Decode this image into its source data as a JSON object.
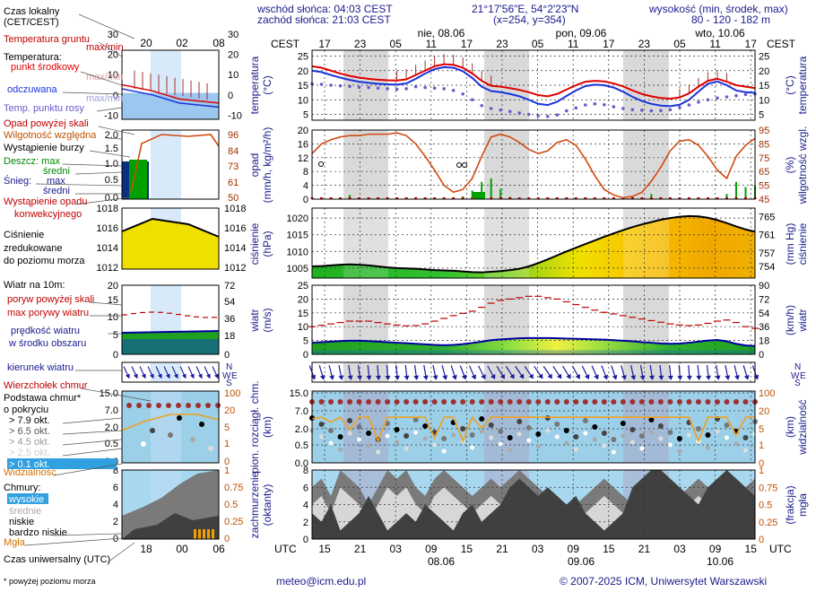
{
  "header": {
    "sunrise": "wschód słońca: 04:03 CEST",
    "sunset": "zachód słońca: 21:03 CEST",
    "coords": "21°17'56\"E, 54°2'23\"N",
    "grid": "(x=254,  y=354)",
    "altitude_title": "wysokość (min, środek, max)",
    "altitude_values": "80 - 120 - 182 m"
  },
  "legend": {
    "local_time": "Czas lokalny",
    "local_time_sub": "(CET/CEST)",
    "soil_temp": "Temperatura gruntu",
    "maxmin": "max/min",
    "temperature": "Temperatura:",
    "midpoint": "punkt środkowy",
    "maxmin2": "max/min",
    "felt": "odczuwana",
    "maxmin3": "max/min",
    "dewpoint": "Temp. punktu rosy",
    "precip_over": "Opad powyżej skali",
    "humidity": "Wilgotność względna",
    "storm": "Wystąpienie burzy",
    "rain": "Deszcz: max",
    "rain_avg": "średni",
    "snow": "Śnieg:",
    "snow_max": "max",
    "snow_avg": "średni",
    "conv": "Wystąpienie opadu",
    "conv2": "konwekcyjnego",
    "pressure1": "Ciśnienie",
    "pressure2": "zredukowane",
    "pressure3": "do poziomu morza",
    "wind_title": "Wiatr na 10m:",
    "gust_over": "poryw powyżej skali",
    "gust_max": "max porywy wiatru",
    "wind_avg": "prędkość wiatru",
    "wind_avg2": "w środku obszaru",
    "wind_dir": "kierunek wiatru",
    "cloud_top": "Wierzchołek chmur",
    "cloud_base": "Podstawa chmur*",
    "cloud_base2": "o pokryciu",
    "okt79": "> 7.9 okt.",
    "okt65": "> 6.5 okt.",
    "okt45": "> 4.5 okt.",
    "okt25": "> 2.5 okt.",
    "okt01": "> 0.1 okt.",
    "visibility": "Widzialność",
    "clouds": "Chmury:",
    "high": "wysokie",
    "mid": "średnie",
    "low": "niskie",
    "vlow": "bardzo niskie",
    "fog": "Mgła",
    "utc_time": "Czas uniwersalny (UTC)",
    "footnote": "* powyżej poziomu morza",
    "leg_top_ticks": [
      "20",
      "02",
      "08"
    ],
    "leg_bottom_ticks": [
      "18",
      "00",
      "06"
    ]
  },
  "footer": {
    "email": "meteo@icm.edu.pl",
    "copyright": "© 2007-2025 ICM, Uniwersytet Warszawski"
  },
  "axes": {
    "cest": "CEST",
    "utc": "UTC",
    "top_hours": [
      "17",
      "23",
      "05",
      "11",
      "17",
      "23",
      "05",
      "11",
      "17",
      "23",
      "05",
      "11",
      "17"
    ],
    "bottom_hours": [
      "15",
      "21",
      "03",
      "09",
      "15",
      "21",
      "03",
      "09",
      "15",
      "21",
      "03",
      "09",
      "15"
    ],
    "top_days": [
      "nie, 08.06",
      "pon, 09.06",
      "wto, 10.06"
    ],
    "bottom_days": [
      "08.06",
      "09.06",
      "10.06"
    ]
  },
  "chart_data": [
    {
      "type": "line",
      "name": "temperature",
      "ylabel_left": "temperatura",
      "ylabel_left_unit": "(°C)",
      "ylabel_right": "temperatura",
      "ylabel_right_unit": "(°C)",
      "ylim": [
        3,
        27
      ],
      "ticks": [
        "25",
        "20",
        "15",
        "10",
        "5"
      ],
      "series": [
        {
          "name": "punkt środkowy",
          "color": "#e00000",
          "values": [
            21.5,
            21,
            20,
            19,
            18.2,
            17.6,
            17.2,
            16.9,
            16.7,
            16.6,
            17,
            18.5,
            20,
            21.5,
            22.2,
            22,
            21,
            19,
            16.5,
            14.8,
            14.5,
            14,
            13.4,
            12.6,
            11.6,
            11.2,
            12,
            13.5,
            15,
            16.2,
            16.5,
            16.3,
            15.6,
            14.6,
            13.2,
            12,
            11.2,
            10.6,
            10.4,
            10.8,
            12.2,
            14.5,
            16.5,
            17.2,
            16.2,
            15,
            14.5,
            14
          ]
        },
        {
          "name": "odczuwana",
          "color": "#1a33dd",
          "values": [
            20,
            19.5,
            18.5,
            17.6,
            16.8,
            16.2,
            15.8,
            15.5,
            15.3,
            15.2,
            15.6,
            17.2,
            19,
            20.5,
            21.2,
            21,
            19.8,
            17.5,
            14.5,
            13,
            12.6,
            12,
            11.2,
            10,
            8.6,
            8.2,
            9.3,
            11.3,
            13.2,
            14.7,
            15.2,
            15,
            14.2,
            12.8,
            11,
            9.6,
            8.6,
            8,
            7.8,
            8.3,
            10,
            12.8,
            15.5,
            16.3,
            15,
            13.2,
            12.6,
            12.4
          ]
        },
        {
          "name": "Temp. punktu rosy",
          "color": "#6a5acd",
          "values": [
            15.5,
            15.3,
            15,
            14.8,
            14.6,
            14.3,
            14.2,
            14,
            13.8,
            13.6,
            13.8,
            14.5,
            14.2,
            14,
            13.8,
            13.2,
            12,
            10,
            8,
            7,
            6.5,
            6,
            5.5,
            5,
            4.5,
            4.3,
            4.8,
            6.2,
            7.2,
            8.2,
            8.6,
            8.3,
            7.6,
            7,
            6.6,
            6.4,
            6.2,
            6.3,
            6.6,
            7.4,
            8.2,
            9.2,
            10,
            10.6,
            11,
            11.4,
            11.8,
            12
          ]
        }
      ]
    },
    {
      "type": "line",
      "name": "precipitation_humidity",
      "ylabel_left": "opad",
      "ylabel_left_unit": "(mm/h, kg/m²/h)",
      "ylabel_right": "wilgotność wzgl.",
      "ylabel_right_unit": "(%)",
      "ylim": [
        0,
        20
      ],
      "ticks": [
        "20",
        "16",
        "12",
        "8",
        "4",
        "0"
      ],
      "ticks_right": [
        "95",
        "85",
        "75",
        "65",
        "55",
        "45"
      ],
      "humidity_lim": [
        45,
        95
      ],
      "series": [
        {
          "name": "Wilgotność względna",
          "color": "#d04a10",
          "values": [
            78,
            85,
            88,
            90,
            91,
            91,
            92,
            92,
            92,
            93,
            91,
            85,
            76,
            66,
            55,
            50,
            52,
            60,
            76,
            90,
            92,
            90,
            86,
            81,
            78,
            80,
            86,
            88,
            84,
            74,
            62,
            52,
            48,
            46,
            47,
            50,
            58,
            68,
            80,
            87,
            88,
            84,
            76,
            66,
            60,
            76,
            84,
            89
          ]
        },
        {
          "name": "Deszcz: max",
          "color": "#008800",
          "values": [
            0.2,
            0.5,
            0.2,
            0.3,
            1.2,
            0.4,
            0.2,
            0,
            0,
            0,
            0,
            0,
            0.3,
            0.4,
            0.2,
            0.3,
            0.8,
            2.5,
            5,
            6,
            3,
            0.7,
            0.3,
            0.2,
            0,
            0,
            0,
            0,
            0,
            0,
            0.2,
            0,
            0.5,
            0.2,
            0.3,
            0.4,
            1.5,
            0.6,
            0.2,
            0.2,
            0,
            0,
            0,
            0.5,
            1.5,
            5,
            3.5,
            4
          ]
        }
      ]
    },
    {
      "type": "area",
      "name": "pressure",
      "ylabel_left": "ciśnienie",
      "ylabel_left_unit": "(hPa)",
      "ylabel_right": "ciśnienie",
      "ylabel_right_unit": "(mm Hg)",
      "ylim": [
        1002,
        1023
      ],
      "ticks": [
        "1020",
        "1015",
        "1010",
        "1005"
      ],
      "ticks_right": [
        "765",
        "761",
        "757",
        "754"
      ],
      "series": [
        {
          "name": "Ciśnienie",
          "color": "#000000",
          "values": [
            1005.5,
            1005.6,
            1005.8,
            1006.0,
            1006.1,
            1006.0,
            1005.8,
            1005.5,
            1005.2,
            1005.0,
            1004.9,
            1004.8,
            1004.6,
            1004.4,
            1004.3,
            1004.2,
            1004.0,
            1003.8,
            1003.7,
            1003.9,
            1004.1,
            1004.4,
            1004.8,
            1005.5,
            1006.5,
            1007.6,
            1008.8,
            1010.0,
            1011.1,
            1012.2,
            1013.3,
            1014.4,
            1015.4,
            1016.4,
            1017.3,
            1018.1,
            1018.8,
            1019.5,
            1020.0,
            1020.4,
            1020.6,
            1020.5,
            1020.1,
            1019.4,
            1018.5,
            1017.5,
            1016.6,
            1015.9
          ]
        }
      ]
    },
    {
      "type": "line",
      "name": "wind",
      "ylabel_left": "wiatr",
      "ylabel_left_unit": "(m/s)",
      "ylabel_right": "wiatr",
      "ylabel_right_unit": "(km/h)",
      "ylim": [
        0,
        25
      ],
      "ticks": [
        "25",
        "20",
        "15",
        "10",
        "5",
        "0"
      ],
      "ticks_right": [
        "90",
        "72",
        "54",
        "36",
        "18",
        "0"
      ],
      "series": [
        {
          "name": "prędkość wiatru",
          "color": "#0000a0",
          "values": [
            4.2,
            4.4,
            4.6,
            4.8,
            4.9,
            4.9,
            4.8,
            4.6,
            4.4,
            4.2,
            4.0,
            3.8,
            3.6,
            3.4,
            3.3,
            3.4,
            3.7,
            4.1,
            4.6,
            5.1,
            5.4,
            5.6,
            5.8,
            5.9,
            5.9,
            5.9,
            5.8,
            5.7,
            5.6,
            5.5,
            5.4,
            5.3,
            5.1,
            4.9,
            4.7,
            4.4,
            4.2,
            3.9,
            3.8,
            3.9,
            4.2,
            4.6,
            5.0,
            5.2,
            4.7,
            3.8,
            3.2,
            3.0
          ]
        },
        {
          "name": "max porywy wiatru",
          "color": "#c00000",
          "values": [
            10,
            10.5,
            11,
            11.5,
            12,
            12,
            12,
            11.5,
            11,
            10.6,
            10.3,
            10.4,
            11,
            12,
            13,
            14,
            14.8,
            15.6,
            17,
            18.5,
            19.5,
            20,
            20.5,
            21,
            21,
            20.5,
            20,
            19,
            18,
            17,
            16,
            15.2,
            14.6,
            14,
            13.4,
            12.8,
            12.2,
            11.6,
            11,
            10.6,
            10.4,
            10.6,
            11.2,
            12,
            12.4,
            11.5,
            10,
            9.4
          ]
        }
      ]
    },
    {
      "type": "line",
      "name": "clouds_base",
      "ylabel_left": "pion. rozciągł. chm.",
      "ylabel_left_unit": "(km)",
      "ylabel_right": "widzialność",
      "ylabel_right_unit": "(km)",
      "ticks": [
        "15.0",
        "7.0",
        "2.0",
        "0.5",
        "0.0"
      ],
      "ticks_right": [
        "100",
        "20",
        "5",
        "1",
        "0"
      ],
      "series": [
        {
          "name": "Widzialność",
          "color": "#f0a020",
          "values": [
            18,
            20,
            14,
            20,
            8,
            20,
            20,
            3,
            20,
            20,
            20,
            20,
            20,
            4,
            20,
            20,
            3,
            20,
            9,
            20,
            20,
            20,
            20,
            20,
            20,
            20,
            20,
            20,
            20,
            20,
            20,
            20,
            20,
            20,
            20,
            20,
            20,
            20,
            20,
            20,
            20,
            3,
            20,
            20,
            20,
            5,
            20,
            20
          ]
        }
      ]
    },
    {
      "type": "area",
      "name": "cloud_cover",
      "ylabel_left": "zachmurzenie",
      "ylabel_left_unit": "(oktanty)",
      "ylabel_right": "mgła",
      "ylabel_right_unit": "(frakcja)",
      "ylim": [
        0,
        8
      ],
      "ticks": [
        "8",
        "6",
        "4",
        "2",
        "0"
      ],
      "ticks_right": [
        "1",
        "0.75",
        "0.5",
        "0.25",
        "0"
      ],
      "series": [
        {
          "name": "wysokie",
          "color": "#ffffff",
          "values": [
            6,
            7,
            5,
            8,
            7,
            6,
            4,
            6,
            8,
            7,
            8,
            6,
            5,
            7,
            8,
            7,
            6,
            5,
            6,
            7,
            6,
            7,
            8,
            7,
            6,
            5,
            4,
            3,
            4,
            5,
            6,
            7,
            6,
            5,
            4,
            3,
            2,
            3,
            4,
            5,
            6,
            7,
            6,
            5,
            4,
            5,
            6,
            7
          ]
        },
        {
          "name": "niskie",
          "color": "#404040",
          "values": [
            3,
            2,
            4,
            1,
            2,
            3,
            5,
            3,
            1,
            2,
            3,
            2,
            4,
            3,
            2,
            1,
            3,
            4,
            2,
            3,
            4,
            6,
            7,
            6,
            5,
            6,
            5,
            4,
            5,
            3,
            2,
            1,
            2,
            3,
            6,
            7,
            8,
            8,
            7,
            6,
            5,
            4,
            6,
            7,
            8,
            7,
            6,
            5
          ]
        }
      ]
    }
  ]
}
